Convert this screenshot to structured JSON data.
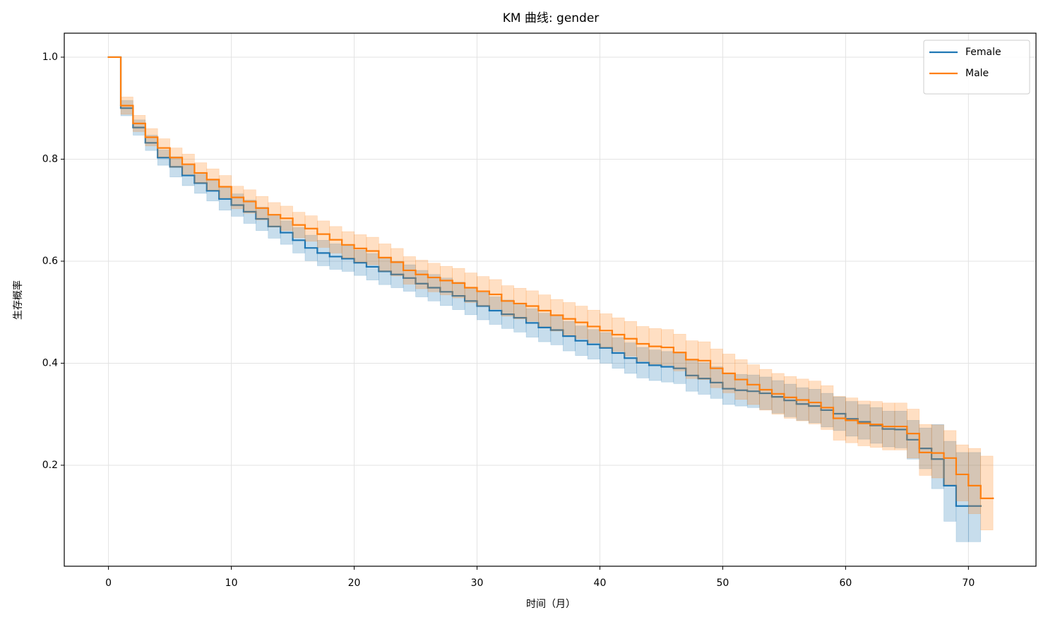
{
  "chart_data": {
    "type": "line",
    "step": "post",
    "title": "KM 曲线: gender",
    "xlabel": "时间（月）",
    "ylabel": "生存概率",
    "xlim": [
      -3.6,
      75.5
    ],
    "ylim": [
      0.002,
      1.047
    ],
    "xticks": [
      0,
      10,
      20,
      30,
      40,
      50,
      60,
      70
    ],
    "yticks": [
      0.2,
      0.4,
      0.6,
      0.8,
      {
        "value": 1,
        "label": "1.0"
      }
    ],
    "grid": true,
    "legend": "upper right",
    "band_alpha": 0.25,
    "series": [
      {
        "name": "Female",
        "color": "#1f77b4",
        "x": [
          0,
          1,
          2,
          3,
          4,
          5,
          6,
          7,
          8,
          9,
          10,
          11,
          12,
          13,
          14,
          15,
          16,
          17,
          18,
          19,
          20,
          21,
          22,
          23,
          24,
          25,
          26,
          27,
          28,
          29,
          30,
          31,
          32,
          33,
          34,
          35,
          36,
          37,
          38,
          39,
          40,
          41,
          42,
          43,
          44,
          45,
          46,
          47,
          48,
          49,
          50,
          51,
          52,
          53,
          54,
          55,
          56,
          57,
          58,
          59,
          60,
          61,
          62,
          63,
          64,
          65,
          66,
          67,
          68,
          69,
          70,
          71
        ],
        "values": [
          1.0,
          0.9,
          0.862,
          0.832,
          0.803,
          0.785,
          0.768,
          0.753,
          0.738,
          0.722,
          0.71,
          0.697,
          0.683,
          0.668,
          0.656,
          0.641,
          0.626,
          0.616,
          0.609,
          0.605,
          0.597,
          0.589,
          0.58,
          0.574,
          0.567,
          0.556,
          0.548,
          0.54,
          0.532,
          0.522,
          0.512,
          0.503,
          0.496,
          0.489,
          0.479,
          0.47,
          0.465,
          0.453,
          0.444,
          0.437,
          0.43,
          0.42,
          0.41,
          0.401,
          0.396,
          0.393,
          0.39,
          0.376,
          0.37,
          0.362,
          0.35,
          0.347,
          0.345,
          0.341,
          0.334,
          0.327,
          0.32,
          0.316,
          0.308,
          0.301,
          0.291,
          0.285,
          0.278,
          0.271,
          0.27,
          0.25,
          0.233,
          0.212,
          0.16,
          0.12,
          0.12,
          0.12
        ],
        "lower": [
          1.0,
          0.885,
          0.847,
          0.817,
          0.788,
          0.765,
          0.748,
          0.733,
          0.718,
          0.7,
          0.688,
          0.674,
          0.66,
          0.645,
          0.633,
          0.616,
          0.601,
          0.591,
          0.584,
          0.58,
          0.572,
          0.563,
          0.554,
          0.548,
          0.541,
          0.53,
          0.522,
          0.513,
          0.505,
          0.495,
          0.485,
          0.476,
          0.468,
          0.461,
          0.451,
          0.442,
          0.436,
          0.424,
          0.415,
          0.408,
          0.4,
          0.39,
          0.38,
          0.371,
          0.366,
          0.363,
          0.36,
          0.345,
          0.339,
          0.331,
          0.319,
          0.316,
          0.313,
          0.309,
          0.302,
          0.295,
          0.288,
          0.283,
          0.275,
          0.268,
          0.257,
          0.251,
          0.243,
          0.236,
          0.234,
          0.212,
          0.193,
          0.154,
          0.09,
          0.05,
          0.05,
          0.05
        ],
        "upper": [
          1.0,
          0.915,
          0.877,
          0.847,
          0.818,
          0.805,
          0.788,
          0.773,
          0.758,
          0.744,
          0.732,
          0.72,
          0.706,
          0.691,
          0.679,
          0.666,
          0.651,
          0.641,
          0.634,
          0.63,
          0.622,
          0.615,
          0.606,
          0.6,
          0.593,
          0.582,
          0.574,
          0.567,
          0.559,
          0.549,
          0.539,
          0.53,
          0.524,
          0.517,
          0.507,
          0.498,
          0.494,
          0.482,
          0.473,
          0.466,
          0.46,
          0.45,
          0.44,
          0.431,
          0.426,
          0.423,
          0.42,
          0.407,
          0.401,
          0.393,
          0.381,
          0.378,
          0.377,
          0.373,
          0.366,
          0.359,
          0.352,
          0.349,
          0.341,
          0.334,
          0.325,
          0.319,
          0.313,
          0.306,
          0.306,
          0.288,
          0.273,
          0.28,
          0.247,
          0.225,
          0.225,
          0.225
        ]
      },
      {
        "name": "Male",
        "color": "#ff7f0e",
        "x": [
          0,
          1,
          2,
          3,
          4,
          5,
          6,
          7,
          8,
          9,
          10,
          11,
          12,
          13,
          14,
          15,
          16,
          17,
          18,
          19,
          20,
          21,
          22,
          23,
          24,
          25,
          26,
          27,
          28,
          29,
          30,
          31,
          32,
          33,
          34,
          35,
          36,
          37,
          38,
          39,
          40,
          41,
          42,
          43,
          44,
          45,
          46,
          47,
          48,
          49,
          50,
          51,
          52,
          53,
          54,
          55,
          56,
          57,
          58,
          59,
          60,
          61,
          62,
          63,
          64,
          65,
          66,
          67,
          68,
          69,
          70,
          71,
          72
        ],
        "values": [
          1.0,
          0.905,
          0.87,
          0.843,
          0.822,
          0.803,
          0.79,
          0.773,
          0.76,
          0.746,
          0.725,
          0.717,
          0.704,
          0.691,
          0.684,
          0.671,
          0.664,
          0.653,
          0.642,
          0.632,
          0.625,
          0.62,
          0.607,
          0.598,
          0.582,
          0.574,
          0.568,
          0.562,
          0.557,
          0.548,
          0.541,
          0.535,
          0.522,
          0.517,
          0.512,
          0.503,
          0.494,
          0.487,
          0.48,
          0.472,
          0.464,
          0.456,
          0.448,
          0.438,
          0.433,
          0.431,
          0.421,
          0.407,
          0.405,
          0.39,
          0.38,
          0.368,
          0.358,
          0.348,
          0.34,
          0.333,
          0.328,
          0.323,
          0.313,
          0.292,
          0.288,
          0.282,
          0.28,
          0.276,
          0.276,
          0.262,
          0.225,
          0.224,
          0.214,
          0.182,
          0.16,
          0.135,
          0.135
        ],
        "lower": [
          1.0,
          0.888,
          0.854,
          0.826,
          0.804,
          0.784,
          0.77,
          0.753,
          0.739,
          0.724,
          0.703,
          0.694,
          0.681,
          0.667,
          0.66,
          0.646,
          0.639,
          0.627,
          0.616,
          0.606,
          0.598,
          0.593,
          0.58,
          0.571,
          0.555,
          0.546,
          0.54,
          0.534,
          0.528,
          0.519,
          0.512,
          0.506,
          0.492,
          0.487,
          0.482,
          0.472,
          0.463,
          0.455,
          0.448,
          0.44,
          0.431,
          0.423,
          0.414,
          0.404,
          0.398,
          0.396,
          0.385,
          0.37,
          0.368,
          0.352,
          0.342,
          0.329,
          0.319,
          0.308,
          0.3,
          0.292,
          0.287,
          0.281,
          0.27,
          0.249,
          0.244,
          0.238,
          0.235,
          0.23,
          0.23,
          0.214,
          0.18,
          0.175,
          0.162,
          0.13,
          0.105,
          0.073,
          0.073
        ],
        "upper": [
          1.0,
          0.922,
          0.886,
          0.86,
          0.84,
          0.822,
          0.81,
          0.793,
          0.781,
          0.768,
          0.747,
          0.74,
          0.727,
          0.715,
          0.708,
          0.696,
          0.689,
          0.679,
          0.668,
          0.658,
          0.652,
          0.647,
          0.634,
          0.625,
          0.609,
          0.602,
          0.596,
          0.59,
          0.586,
          0.577,
          0.57,
          0.564,
          0.552,
          0.547,
          0.542,
          0.534,
          0.525,
          0.519,
          0.512,
          0.504,
          0.497,
          0.489,
          0.482,
          0.472,
          0.468,
          0.466,
          0.457,
          0.444,
          0.442,
          0.428,
          0.418,
          0.407,
          0.397,
          0.388,
          0.38,
          0.374,
          0.369,
          0.365,
          0.356,
          0.335,
          0.332,
          0.326,
          0.325,
          0.322,
          0.322,
          0.31,
          0.28,
          0.279,
          0.268,
          0.24,
          0.233,
          0.218,
          0.218
        ]
      }
    ]
  }
}
